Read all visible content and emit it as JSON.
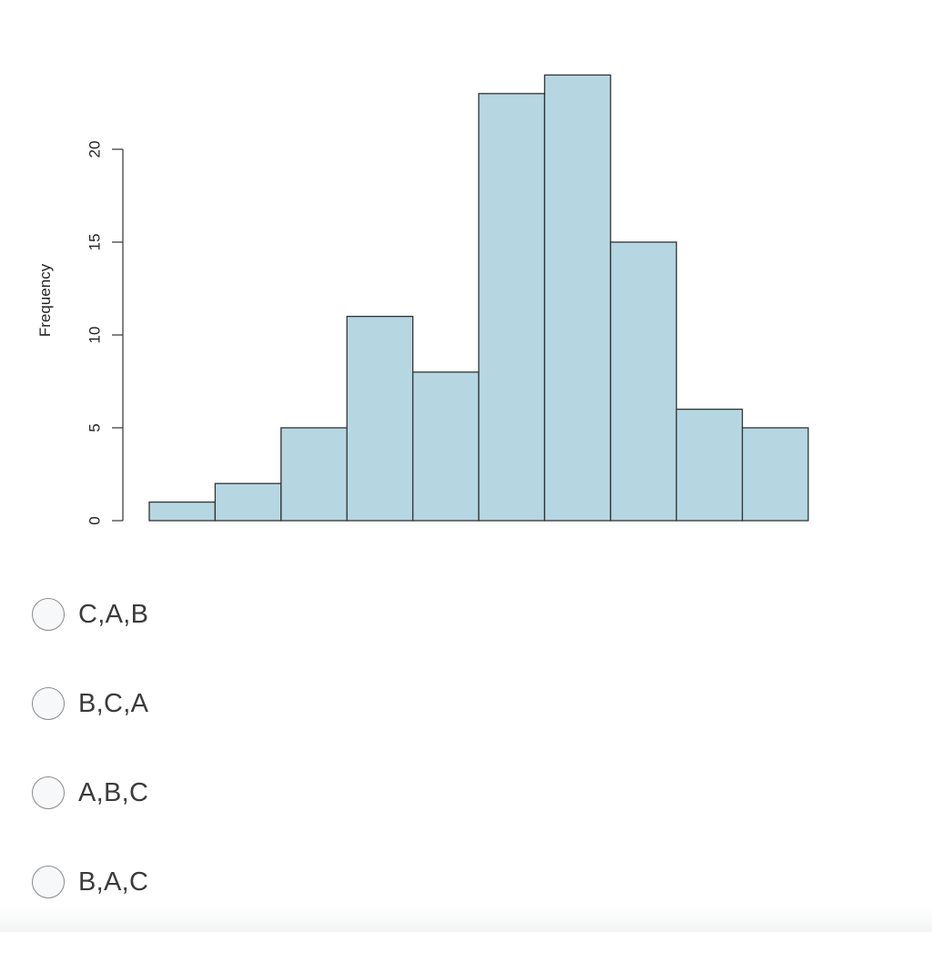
{
  "chart_data": {
    "type": "histogram",
    "title": "",
    "xlabel": "",
    "ylabel": "Frequency",
    "ylim": [
      0,
      24
    ],
    "yticks": [
      0,
      5,
      10,
      15,
      20
    ],
    "values": [
      1,
      2,
      5,
      11,
      8,
      23,
      24,
      15,
      6,
      5
    ],
    "bar_color": "#b6d7e2",
    "bar_stroke": "#333333",
    "grid": false
  },
  "options": [
    {
      "label": "C,A,B"
    },
    {
      "label": "B,C,A"
    },
    {
      "label": "A,B,C"
    },
    {
      "label": "B,A,C"
    }
  ]
}
